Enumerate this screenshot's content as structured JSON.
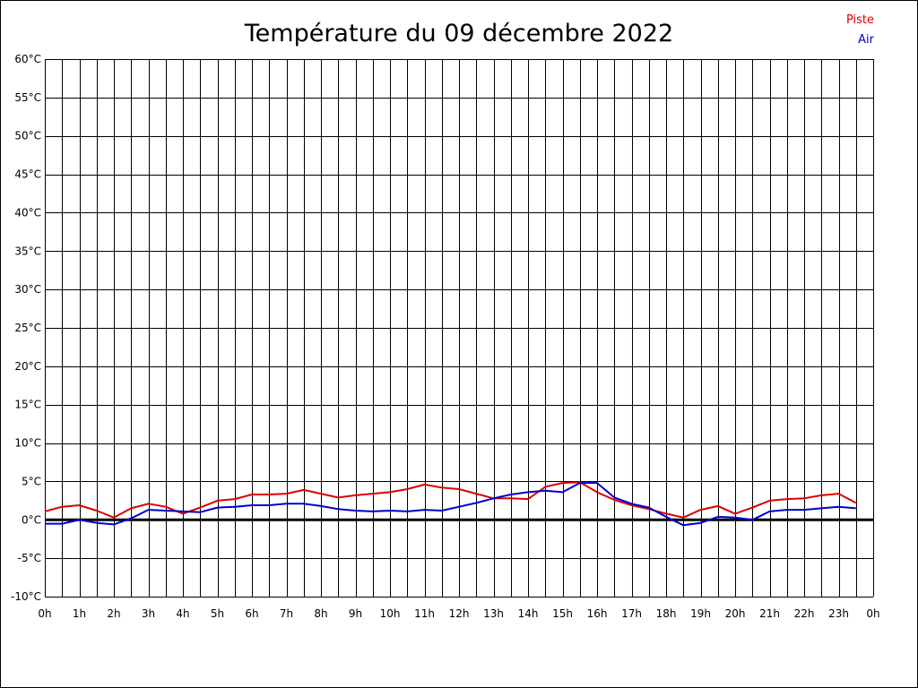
{
  "chart_data": {
    "type": "line",
    "title": "Température du 09 décembre 2022",
    "xlabel": "",
    "ylabel": "",
    "x_unit": "hours",
    "xlim": [
      0,
      24
    ],
    "ylim": [
      -10,
      60
    ],
    "y_ticks": [
      -10,
      -5,
      0,
      5,
      10,
      15,
      20,
      25,
      30,
      35,
      40,
      45,
      50,
      55,
      60
    ],
    "y_tick_labels": [
      "-10°C",
      "-5°C",
      "0°C",
      "5°C",
      "10°C",
      "15°C",
      "20°C",
      "25°C",
      "30°C",
      "35°C",
      "40°C",
      "45°C",
      "50°C",
      "55°C",
      "60°C"
    ],
    "x_ticks": [
      0,
      1,
      2,
      3,
      4,
      5,
      6,
      7,
      8,
      9,
      10,
      11,
      12,
      13,
      14,
      15,
      16,
      17,
      18,
      19,
      20,
      21,
      22,
      23,
      24
    ],
    "x_tick_labels": [
      "0h",
      "1h",
      "2h",
      "3h",
      "4h",
      "5h",
      "6h",
      "7h",
      "8h",
      "9h",
      "10h",
      "11h",
      "12h",
      "13h",
      "14h",
      "15h",
      "16h",
      "17h",
      "18h",
      "19h",
      "20h",
      "21h",
      "22h",
      "23h",
      "0h"
    ],
    "grid": true,
    "legend_position": "top-right",
    "series": [
      {
        "name": "Piste",
        "color": "#dd0000",
        "x": [
          0,
          0.5,
          1,
          1.5,
          2,
          2.5,
          3,
          3.5,
          4,
          4.5,
          5,
          5.5,
          6,
          6.5,
          7,
          7.5,
          8,
          8.5,
          9,
          9.5,
          10,
          10.5,
          11,
          11.5,
          12,
          12.5,
          13,
          13.5,
          14,
          14.5,
          15,
          15.5,
          16,
          16.5,
          17,
          17.5,
          18,
          18.5,
          19,
          19.5,
          20,
          20.5,
          21,
          21.5,
          22,
          22.5,
          23,
          23.5
        ],
        "values": [
          1.1,
          1.7,
          1.9,
          1.2,
          0.3,
          1.5,
          2.1,
          1.7,
          0.8,
          1.6,
          2.5,
          2.7,
          3.3,
          3.3,
          3.4,
          3.9,
          3.4,
          2.9,
          3.2,
          3.4,
          3.6,
          4.0,
          4.6,
          4.2,
          4.0,
          3.4,
          2.8,
          2.8,
          2.7,
          4.3,
          4.8,
          4.9,
          3.6,
          2.6,
          1.9,
          1.4,
          0.8,
          0.3,
          1.3,
          1.8,
          0.8,
          1.6,
          2.5,
          2.7,
          2.8,
          3.2,
          3.4,
          2.2
        ]
      },
      {
        "name": "Air",
        "color": "#0000cc",
        "x": [
          0,
          0.5,
          1,
          1.5,
          2,
          2.5,
          3,
          3.5,
          4,
          4.5,
          5,
          5.5,
          6,
          6.5,
          7,
          7.5,
          8,
          8.5,
          9,
          9.5,
          10,
          10.5,
          11,
          11.5,
          12,
          12.5,
          13,
          13.5,
          14,
          14.5,
          15,
          15.5,
          16,
          16.5,
          17,
          17.5,
          18,
          18.5,
          19,
          19.5,
          20,
          20.5,
          21,
          21.5,
          22,
          22.5,
          23,
          23.5
        ],
        "values": [
          -0.5,
          -0.5,
          0.0,
          -0.4,
          -0.6,
          0.2,
          1.3,
          1.2,
          1.1,
          1.0,
          1.6,
          1.7,
          1.9,
          1.9,
          2.1,
          2.1,
          1.8,
          1.4,
          1.2,
          1.1,
          1.2,
          1.1,
          1.3,
          1.2,
          1.7,
          2.2,
          2.8,
          3.3,
          3.6,
          3.8,
          3.6,
          4.8,
          4.8,
          2.9,
          2.1,
          1.6,
          0.4,
          -0.7,
          -0.4,
          0.4,
          0.3,
          0.0,
          1.1,
          1.3,
          1.3,
          1.5,
          1.7,
          1.5
        ]
      }
    ]
  }
}
